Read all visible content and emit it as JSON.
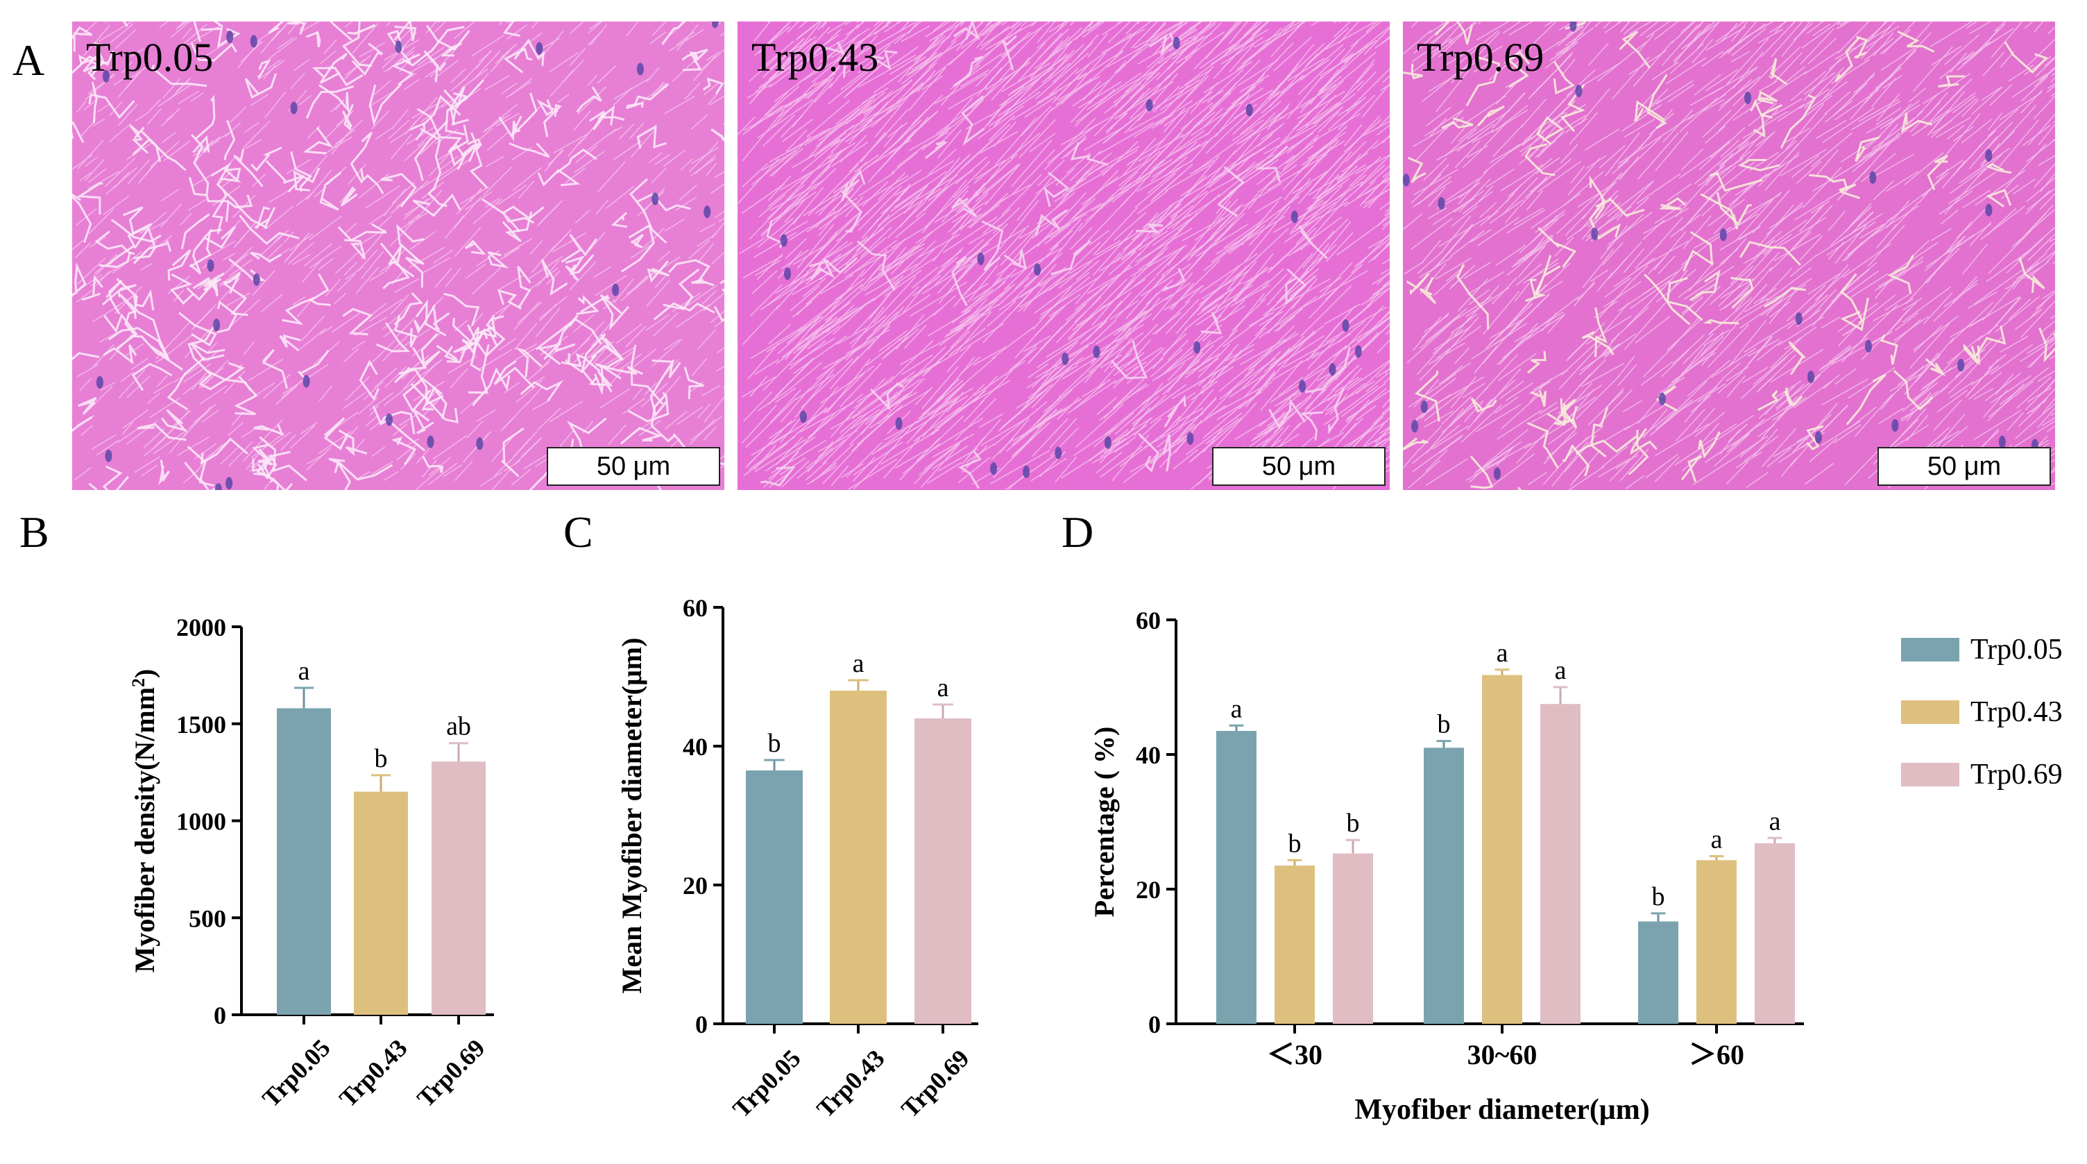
{
  "panel_letters": {
    "a": "A",
    "b": "B",
    "c": "C",
    "d": "D"
  },
  "micrographs": [
    {
      "label": "Trp0.05",
      "scale": "50 μm"
    },
    {
      "label": "Trp0.43",
      "scale": "50 μm"
    },
    {
      "label": "Trp0.69",
      "scale": "50 μm"
    }
  ],
  "colors": {
    "Trp0.05": "#7aa3af",
    "Trp0.43": "#dec07e",
    "Trp0.69": "#e0bcc3"
  },
  "chart_data": [
    {
      "type": "bar",
      "ylabel": "Myofiber density(N/mm",
      "ylabel_superscript": "2",
      "ylabel_suffix": ")",
      "categories": [
        "Trp0.05",
        "Trp0.43",
        "Trp0.69"
      ],
      "values": [
        1580,
        1150,
        1305
      ],
      "errors": [
        105,
        85,
        95
      ],
      "letters": [
        "a",
        "b",
        "ab"
      ],
      "ylim": [
        0,
        2000
      ],
      "yticks": [
        0,
        500,
        1000,
        1500,
        2000
      ]
    },
    {
      "type": "bar",
      "ylabel": "Mean Myofiber diameter(μm)",
      "categories": [
        "Trp0.05",
        "Trp0.43",
        "Trp0.69"
      ],
      "values": [
        36.5,
        48.0,
        44.0
      ],
      "errors": [
        1.5,
        1.5,
        2.0
      ],
      "letters": [
        "b",
        "a",
        "a"
      ],
      "ylim": [
        0,
        60
      ],
      "yticks": [
        0,
        20,
        40,
        60
      ]
    },
    {
      "type": "bar",
      "ylabel": "Percentage ( %)",
      "xlabel": "Myofiber diameter(μm)",
      "categories": [
        "＜30",
        "30~60",
        "＞60"
      ],
      "series": [
        {
          "name": "Trp0.05",
          "values": [
            43.5,
            41.0,
            15.2
          ],
          "errors": [
            0.8,
            1.0,
            1.2
          ],
          "letters": [
            "a",
            "b",
            "b"
          ]
        },
        {
          "name": "Trp0.43",
          "values": [
            23.5,
            51.8,
            24.3
          ],
          "errors": [
            0.8,
            0.8,
            0.6
          ],
          "letters": [
            "b",
            "a",
            "a"
          ]
        },
        {
          "name": "Trp0.69",
          "values": [
            25.3,
            47.5,
            26.8
          ],
          "errors": [
            2.0,
            2.5,
            0.8
          ],
          "letters": [
            "b",
            "a",
            "a"
          ]
        }
      ],
      "ylim": [
        0,
        60
      ],
      "yticks": [
        0,
        20,
        40,
        60
      ],
      "legend_position": "right"
    }
  ]
}
